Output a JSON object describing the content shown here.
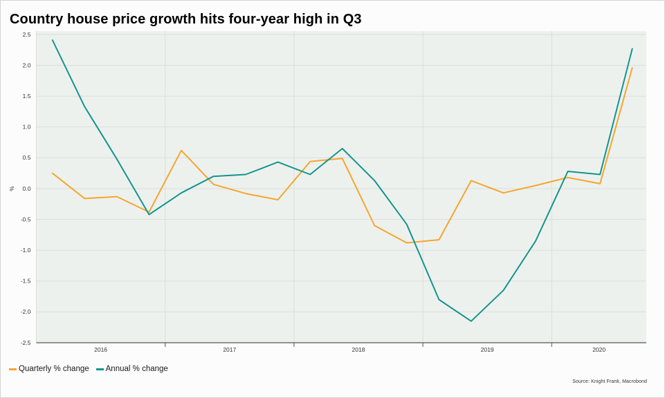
{
  "page": {
    "background": "#fcfcfc"
  },
  "colors": {
    "plot_bg": "#edf1ee",
    "grid": "#dbdedb",
    "axis": "#555555",
    "tick_text": "#333333",
    "title_text": "#000000",
    "quarterly_orange": "#f6a52d",
    "annual_teal": "#13948d"
  },
  "source": "Source: Knight Frank, Macrobond",
  "chart_data": {
    "type": "line",
    "title": "Country house price growth hits four-year high in Q3",
    "xlabel": "",
    "ylabel": "%",
    "ylim": [
      -2.5,
      2.5
    ],
    "ytick_step": 0.5,
    "grid": true,
    "legend_position": "bottom-left",
    "yticks": [
      "2.5",
      "2.0",
      "1.5",
      "1.0",
      "0.5",
      "0.0",
      "-0.5",
      "-1.0",
      "-1.5",
      "-2.0",
      "-2.5"
    ],
    "xticks": [
      "2016",
      "2017",
      "2018",
      "2019",
      "2020"
    ],
    "categories": [
      "2016 Q1",
      "2016 Q2",
      "2016 Q3",
      "2016 Q4",
      "2017 Q1",
      "2017 Q2",
      "2017 Q3",
      "2017 Q4",
      "2018 Q1",
      "2018 Q2",
      "2018 Q3",
      "2018 Q4",
      "2019 Q1",
      "2019 Q2",
      "2019 Q3",
      "2019 Q4",
      "2020 Q1",
      "2020 Q2",
      "2020 Q3"
    ],
    "series": [
      {
        "name": "Quarterly % change",
        "color": "#f6a52d",
        "values": [
          0.25,
          -0.16,
          -0.13,
          -0.38,
          0.62,
          0.07,
          -0.08,
          -0.18,
          0.44,
          0.49,
          -0.6,
          -0.88,
          -0.83,
          0.13,
          -0.07,
          0.05,
          0.18,
          0.08,
          1.96
        ]
      },
      {
        "name": "Annual % change",
        "color": "#13948d",
        "values": [
          2.41,
          1.33,
          0.48,
          -0.42,
          -0.07,
          0.2,
          0.23,
          0.43,
          0.23,
          0.65,
          0.13,
          -0.58,
          -1.8,
          -2.15,
          -1.65,
          -0.85,
          0.28,
          0.23,
          2.27
        ]
      }
    ]
  }
}
